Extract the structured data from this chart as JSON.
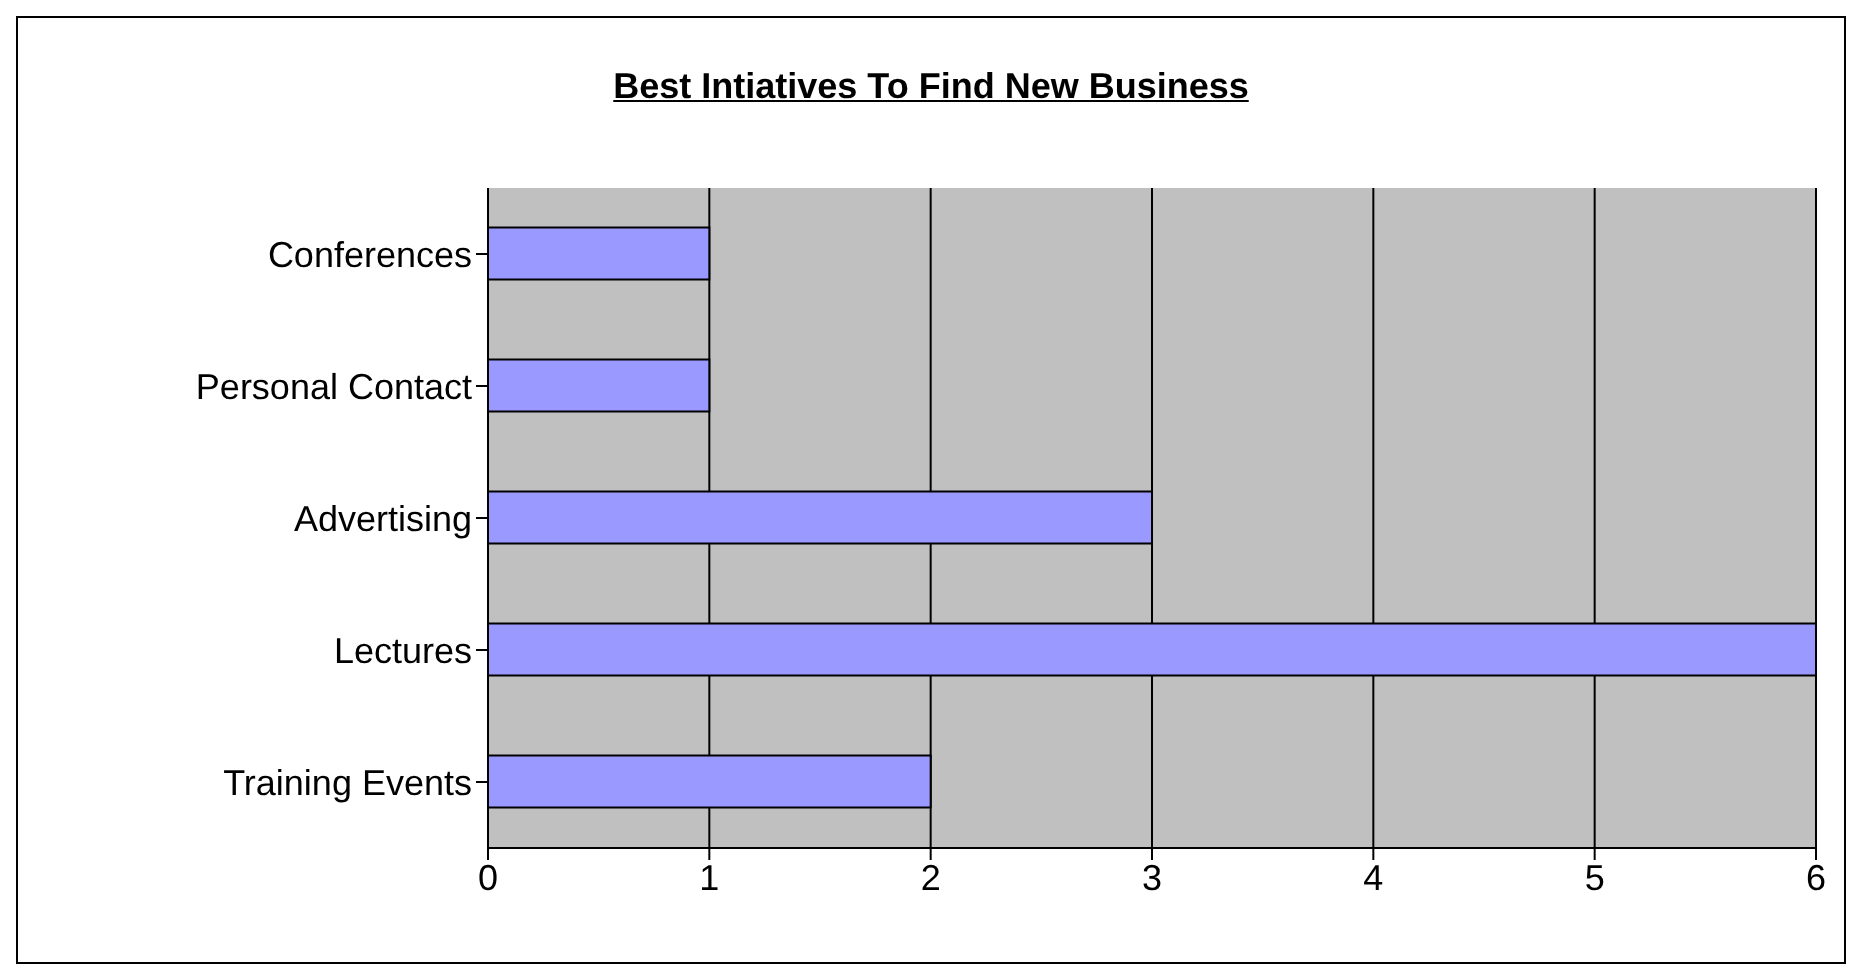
{
  "chart_data": {
    "type": "bar",
    "title": "Best Intiatives To Find New Business",
    "orientation": "horizontal",
    "categories": [
      "Conferences",
      "Personal Contact",
      "Advertising",
      "Lectures",
      "Training Events"
    ],
    "values": [
      1,
      1,
      3,
      6,
      2
    ],
    "color": "#9999ff",
    "xlim": [
      0,
      6
    ],
    "xticks": [
      0,
      1,
      2,
      3,
      4,
      5,
      6
    ],
    "grid": "x"
  }
}
